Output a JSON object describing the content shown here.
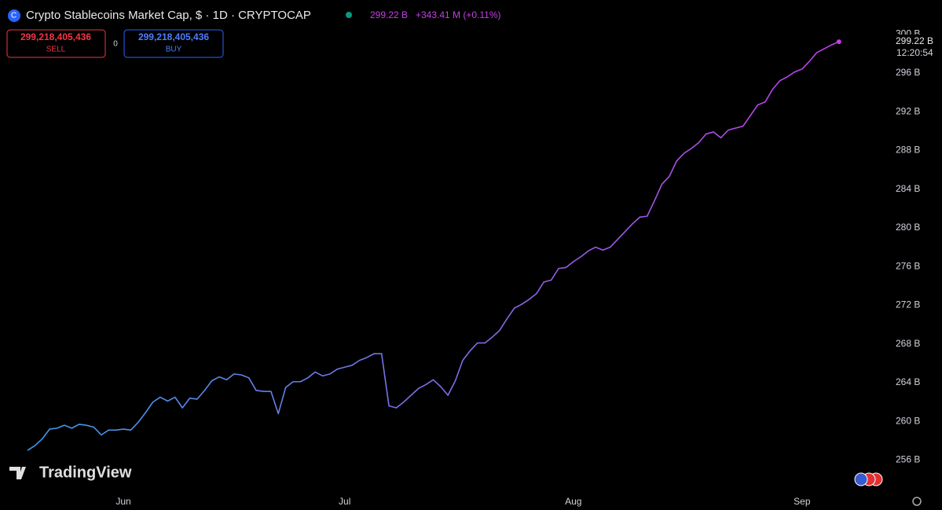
{
  "header": {
    "title": "Crypto Stablecoins Market Cap, $ · 1D · CRYPTOCAP",
    "last": "299.22 B",
    "change": "+343.41 M (+0.11%)",
    "sell_price": "299,218,405,436",
    "sell_label": "SELL",
    "spread": "0",
    "buy_price": "299,218,405,436",
    "buy_label": "BUY",
    "brand": "TradingView",
    "last_price_label": "299.22 B",
    "last_time": "12:20:54"
  },
  "chart_data": {
    "type": "line",
    "categories": [
      null,
      null,
      null,
      null,
      null,
      null,
      null,
      null,
      null,
      null,
      null,
      null,
      null,
      "Jun",
      null,
      null,
      null,
      null,
      null,
      null,
      null,
      null,
      null,
      null,
      null,
      null,
      null,
      null,
      null,
      null,
      null,
      null,
      null,
      null,
      null,
      null,
      null,
      null,
      null,
      null,
      null,
      null,
      null,
      "Jul",
      null,
      null,
      null,
      null,
      null,
      null,
      null,
      null,
      null,
      null,
      null,
      null,
      null,
      null,
      null,
      null,
      null,
      null,
      null,
      null,
      null,
      null,
      null,
      null,
      null,
      null,
      null,
      null,
      null,
      null,
      "Aug",
      null,
      null,
      null,
      null,
      null,
      null,
      null,
      null,
      null,
      null,
      null,
      null,
      null,
      null,
      null,
      null,
      null,
      null,
      null,
      null,
      null,
      null,
      null,
      null,
      null,
      null,
      null,
      null,
      null,
      null,
      "Sep",
      null,
      null,
      null,
      null,
      null
    ],
    "values": [
      257.0,
      257.5,
      258.2,
      259.2,
      259.3,
      259.6,
      259.3,
      259.7,
      259.6,
      259.4,
      258.6,
      259.1,
      259.1,
      259.2,
      259.1,
      259.9,
      260.9,
      262.0,
      262.5,
      262.1,
      262.5,
      261.4,
      262.4,
      262.3,
      263.2,
      264.2,
      264.6,
      264.3,
      264.9,
      264.8,
      264.5,
      263.2,
      263.1,
      263.1,
      260.8,
      263.5,
      264.1,
      264.1,
      264.5,
      265.1,
      264.7,
      264.9,
      265.4,
      265.6,
      265.8,
      266.3,
      266.6,
      267.0,
      267.0,
      261.6,
      261.4,
      262.0,
      262.7,
      263.4,
      263.8,
      264.3,
      263.6,
      262.7,
      264.2,
      266.3,
      267.3,
      268.1,
      268.1,
      268.7,
      269.4,
      270.6,
      271.7,
      272.1,
      272.6,
      273.2,
      274.4,
      274.6,
      275.8,
      275.9,
      276.5,
      277.0,
      277.6,
      278.0,
      277.7,
      278.0,
      278.8,
      279.6,
      280.4,
      281.1,
      281.2,
      282.8,
      284.5,
      285.3,
      286.9,
      287.7,
      288.2,
      288.8,
      289.7,
      289.9,
      289.3,
      290.1,
      290.3,
      290.5,
      291.6,
      292.7,
      293.0,
      294.3,
      295.2,
      295.6,
      296.1,
      296.4,
      297.2,
      298.1,
      298.5,
      298.9,
      299.22
    ],
    "colors": [
      "#3d9be9",
      "#c13ee8"
    ],
    "ylim": [
      253.2,
      301.1
    ],
    "yticks": [
      {
        "value": 256,
        "label": "256 B"
      },
      {
        "value": 260,
        "label": "260 B"
      },
      {
        "value": 264,
        "label": "264 B"
      },
      {
        "value": 268,
        "label": "268 B"
      },
      {
        "value": 272,
        "label": "272 B"
      },
      {
        "value": 276,
        "label": "276 B"
      },
      {
        "value": 280,
        "label": "280 B"
      },
      {
        "value": 284,
        "label": "284 B"
      },
      {
        "value": 288,
        "label": "288 B"
      },
      {
        "value": 292,
        "label": "292 B"
      },
      {
        "value": 296,
        "label": "296 B"
      },
      {
        "value": 300,
        "label": "300 B"
      }
    ],
    "grid": false
  }
}
